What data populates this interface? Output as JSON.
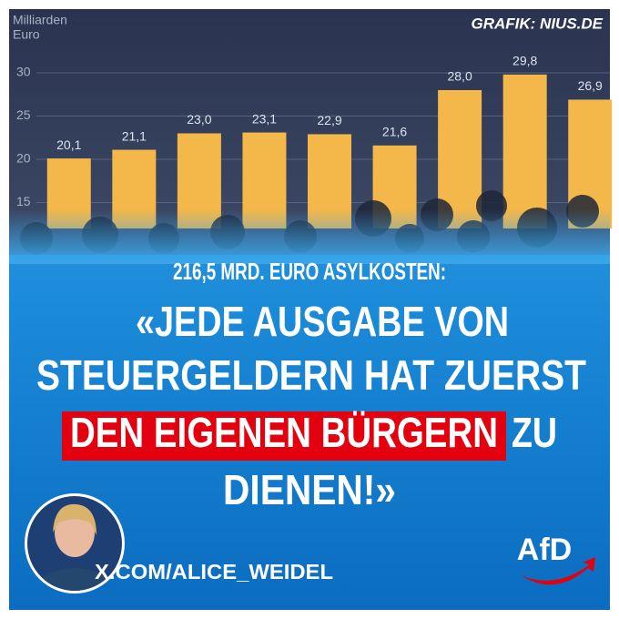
{
  "credit": "GRAFIK: NIUS.DE",
  "headline": "216,5 MRD. EURO ASYLKOSTEN:",
  "quote_lines": [
    "«JEDE AUSGABE VON",
    "STEUERGELDERN HAT ZUERST"
  ],
  "quote_highlight": "DEN EIGENEN BÜRGERN",
  "quote_tail": "ZU",
  "quote_end": "DIENEN!»",
  "handle": "X.COM/ALICE_WEIDEL",
  "logo": "AfD",
  "chart_data": {
    "type": "bar",
    "ylabel": [
      "Milliarden",
      "Euro"
    ],
    "categories": [
      null,
      null,
      null,
      null,
      null,
      null,
      null,
      null,
      null
    ],
    "values": [
      20.1,
      21.1,
      23.0,
      23.1,
      22.9,
      21.6,
      28.0,
      29.8,
      26.9
    ],
    "value_labels": [
      "20,1",
      "21,1",
      "23,0",
      "23,1",
      "22,9",
      "21,6",
      "28,0",
      "29,8",
      "26,9"
    ],
    "color": "#f4b74a",
    "ylim": [
      12,
      38
    ],
    "yticks": [
      15,
      20,
      25,
      30
    ],
    "grid": true
  }
}
